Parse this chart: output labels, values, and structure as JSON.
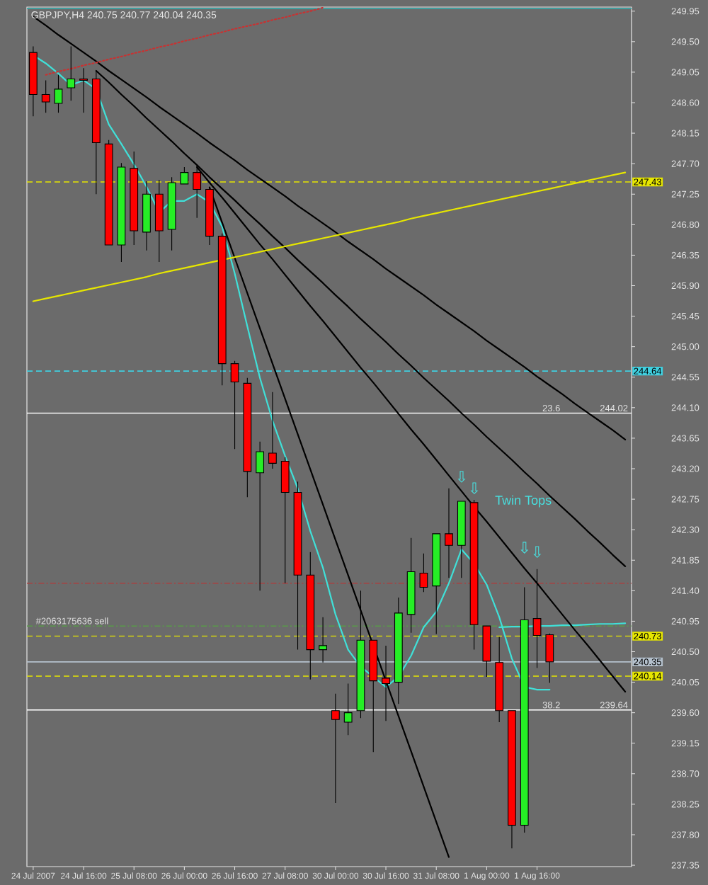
{
  "chart_data": {
    "type": "candlestick",
    "title": "GBPJPY,H4 240.75 240.77 240.04 240.35",
    "categories": [
      "24 Jul 2007",
      null,
      null,
      null,
      "24 Jul 16:00",
      null,
      null,
      null,
      "25 Jul 08:00",
      null,
      null,
      null,
      "26 Jul 00:00",
      null,
      null,
      null,
      "26 Jul 16:00",
      null,
      null,
      null,
      "27 Jul 08:00",
      null,
      null,
      null,
      "30 Jul 00:00",
      null,
      null,
      null,
      "30 Jul 16:00",
      null,
      null,
      null,
      "31 Jul 08:00",
      null,
      null,
      null,
      "1 Aug 00:00",
      null,
      null,
      null,
      "1 Aug 16:00",
      null,
      null,
      null,
      null,
      null,
      null,
      null
    ],
    "ohlc": [
      [
        249.34,
        249.43,
        248.4,
        248.72
      ],
      [
        248.72,
        248.93,
        248.45,
        248.61
      ],
      [
        248.59,
        249.01,
        248.45,
        248.8
      ],
      [
        248.82,
        249.43,
        248.63,
        248.95
      ],
      [
        248.95,
        249.11,
        248.45,
        248.93
      ],
      [
        248.95,
        249.07,
        247.25,
        248.01
      ],
      [
        247.99,
        248.05,
        246.5,
        246.5
      ],
      [
        246.5,
        247.71,
        246.25,
        247.65
      ],
      [
        247.63,
        247.88,
        246.5,
        246.71
      ],
      [
        246.69,
        247.44,
        246.42,
        247.25
      ],
      [
        247.25,
        247.46,
        246.25,
        246.71
      ],
      [
        246.73,
        247.5,
        246.42,
        247.42
      ],
      [
        247.4,
        247.65,
        247.4,
        247.57
      ],
      [
        247.57,
        247.67,
        246.9,
        247.32
      ],
      [
        247.32,
        247.36,
        246.5,
        246.63
      ],
      [
        246.63,
        246.67,
        244.43,
        244.75
      ],
      [
        244.75,
        244.79,
        243.49,
        244.48
      ],
      [
        244.46,
        244.54,
        242.78,
        243.16
      ],
      [
        243.14,
        243.6,
        241.4,
        243.45
      ],
      [
        243.43,
        244.33,
        243.2,
        243.28
      ],
      [
        243.31,
        243.37,
        241.51,
        242.85
      ],
      [
        242.85,
        243.01,
        240.53,
        241.63
      ],
      [
        241.63,
        241.97,
        240.09,
        240.53
      ],
      [
        240.53,
        241.01,
        240.34,
        240.59
      ],
      [
        239.63,
        239.88,
        238.27,
        239.5
      ],
      [
        239.46,
        240.03,
        239.27,
        239.6
      ],
      [
        239.63,
        241.4,
        239.52,
        240.67
      ],
      [
        240.67,
        240.67,
        239.02,
        240.07
      ],
      [
        240.11,
        240.59,
        239.48,
        240.03
      ],
      [
        240.05,
        241.3,
        239.73,
        241.07
      ],
      [
        241.05,
        242.18,
        240.78,
        241.68
      ],
      [
        241.66,
        241.95,
        241.38,
        241.45
      ],
      [
        241.47,
        242.24,
        240.76,
        242.24
      ],
      [
        242.24,
        242.91,
        241.59,
        242.07
      ],
      [
        242.07,
        242.72,
        241.59,
        242.72
      ],
      [
        242.7,
        242.74,
        240.53,
        240.9
      ],
      [
        240.88,
        240.88,
        240.13,
        240.36
      ],
      [
        240.34,
        240.72,
        239.46,
        239.63
      ],
      [
        239.63,
        239.63,
        237.6,
        237.94
      ],
      [
        237.94,
        241.45,
        237.83,
        240.97
      ],
      [
        240.99,
        241.72,
        240.26,
        240.74
      ],
      [
        240.75,
        240.77,
        240.04,
        240.35
      ],
      null,
      null,
      null,
      null,
      null,
      null
    ],
    "colors": [
      "#ff0000",
      "#ff0000",
      "#26ee26",
      "#26ee26",
      "#ff0000",
      "#ff0000",
      "#ff0000",
      "#26ee26",
      "#ff0000",
      "#26ee26",
      "#ff0000",
      "#26ee26",
      "#26ee26",
      "#ff0000",
      "#ff0000",
      "#ff0000",
      "#ff0000",
      "#ff0000",
      "#26ee26",
      "#ff0000",
      "#ff0000",
      "#ff0000",
      "#ff0000",
      "#26ee26",
      "#ff0000",
      "#26ee26",
      "#26ee26",
      "#ff0000",
      "#ff0000",
      "#26ee26",
      "#26ee26",
      "#ff0000",
      "#26ee26",
      "#ff0000",
      "#26ee26",
      "#ff0000",
      "#ff0000",
      "#ff0000",
      "#ff0000",
      "#26ee26",
      "#ff0000",
      "#ff0000",
      null,
      null,
      null,
      null,
      null,
      null
    ],
    "series": [
      {
        "type": "line",
        "color": "#40e0d8",
        "values": [
          249.3,
          249.18,
          249.03,
          248.86,
          248.93,
          248.8,
          248.28,
          247.99,
          247.69,
          247.36,
          246.98,
          247.15,
          247.15,
          247.25,
          247.13,
          246.77,
          246.08,
          245.3,
          244.54,
          243.91,
          243.39,
          242.91,
          242.28,
          241.74,
          241.05,
          240.53,
          240.28,
          240.13,
          239.98,
          240.13,
          240.44,
          240.86,
          241.09,
          241.51,
          242.01,
          241.8,
          241.49,
          241.01,
          240.4,
          239.98,
          239.94,
          239.94,
          null,
          null,
          null,
          null,
          null,
          null
        ]
      },
      {
        "type": "line",
        "color": "#40e0d8",
        "values": [
          null,
          null,
          null,
          null,
          null,
          null,
          null,
          null,
          null,
          null,
          null,
          null,
          null,
          null,
          null,
          null,
          null,
          null,
          null,
          null,
          null,
          null,
          null,
          null,
          null,
          null,
          null,
          null,
          null,
          null,
          null,
          null,
          null,
          null,
          null,
          null,
          null,
          240.86,
          240.87,
          240.87,
          240.88,
          240.88,
          240.89,
          240.89,
          240.9,
          240.91,
          240.91,
          240.92
        ]
      },
      {
        "type": "line",
        "color": "#000000",
        "values": [
          249.87,
          249.74,
          249.6,
          249.47,
          249.34,
          249.21,
          249.07,
          248.94,
          248.81,
          248.68,
          248.54,
          248.41,
          248.28,
          248.15,
          248.01,
          247.88,
          247.75,
          247.61,
          247.48,
          247.35,
          247.22,
          247.08,
          246.95,
          246.82,
          246.69,
          246.55,
          246.42,
          246.29,
          246.15,
          246.02,
          245.89,
          245.76,
          245.62,
          245.49,
          245.36,
          245.23,
          245.09,
          244.96,
          244.83,
          244.7,
          244.56,
          244.43,
          244.3,
          244.16,
          244.03,
          243.9,
          243.77,
          243.63
        ]
      },
      {
        "type": "line",
        "color": "#000000",
        "values": [
          null,
          null,
          null,
          null,
          null,
          249.07,
          248.9,
          248.72,
          248.55,
          248.37,
          248.2,
          248.03,
          247.85,
          247.68,
          247.5,
          247.33,
          247.16,
          246.98,
          246.81,
          246.63,
          246.46,
          246.28,
          246.11,
          245.94,
          245.76,
          245.59,
          245.41,
          245.24,
          245.07,
          244.89,
          244.72,
          244.54,
          244.37,
          244.2,
          244.02,
          243.85,
          243.67,
          243.5,
          243.33,
          243.15,
          242.98,
          242.8,
          242.63,
          242.46,
          242.28,
          242.11,
          241.93,
          241.76
        ]
      },
      {
        "type": "line",
        "color": "#000000",
        "values": [
          null,
          null,
          null,
          null,
          null,
          null,
          null,
          null,
          null,
          null,
          null,
          null,
          null,
          247.65,
          247.42,
          247.2,
          246.97,
          246.74,
          246.51,
          246.29,
          246.06,
          245.83,
          245.6,
          245.38,
          245.15,
          244.92,
          244.69,
          244.47,
          244.24,
          244.01,
          243.78,
          243.56,
          243.33,
          243.1,
          242.87,
          242.64,
          242.42,
          242.19,
          241.96,
          241.73,
          241.51,
          241.28,
          241.05,
          240.82,
          240.6,
          240.37,
          240.14,
          239.91
        ]
      },
      {
        "type": "line",
        "color": "#000000",
        "values": [
          null,
          null,
          null,
          null,
          null,
          null,
          null,
          null,
          null,
          null,
          null,
          null,
          null,
          null,
          247.35,
          246.83,
          246.31,
          245.79,
          245.27,
          244.75,
          244.23,
          243.71,
          243.19,
          242.67,
          242.15,
          241.63,
          241.11,
          240.59,
          240.07,
          239.55,
          239.03,
          238.51,
          237.99,
          237.47,
          null,
          null,
          null,
          null,
          null,
          null,
          null,
          null,
          null,
          null,
          null,
          null,
          null,
          null
        ]
      },
      {
        "type": "line",
        "color": "#e6e600",
        "values": [
          245.67,
          245.71,
          245.75,
          245.79,
          245.83,
          245.87,
          245.91,
          245.95,
          245.99,
          246.03,
          246.08,
          246.12,
          246.16,
          246.2,
          246.24,
          246.28,
          246.32,
          246.36,
          246.4,
          246.44,
          246.48,
          246.52,
          246.56,
          246.6,
          246.64,
          246.68,
          246.72,
          246.76,
          246.8,
          246.84,
          246.89,
          246.93,
          246.97,
          247.01,
          247.05,
          247.09,
          247.13,
          247.17,
          247.21,
          247.25,
          247.29,
          247.33,
          247.37,
          247.41,
          247.45,
          247.49,
          247.53,
          247.57
        ]
      },
      {
        "type": "line",
        "color": "#c83232",
        "line_style": "dotted",
        "values": [
          null,
          249.01,
          249.06,
          249.1,
          249.15,
          249.19,
          249.24,
          249.28,
          249.33,
          249.37,
          249.42,
          249.46,
          249.51,
          249.55,
          249.6,
          249.64,
          249.69,
          249.73,
          249.77,
          249.82,
          249.86,
          249.91,
          249.95,
          250.0,
          null,
          null,
          null,
          null,
          null,
          null,
          null,
          null,
          null,
          null,
          null,
          null,
          null,
          null,
          null,
          null,
          null,
          null,
          null,
          null,
          null,
          null,
          null,
          null
        ]
      }
    ],
    "ylim": [
      237.33,
      250.01
    ],
    "yticks": [
      249.95,
      {
        "value": 249.5,
        "label": "249.50"
      },
      249.05,
      {
        "value": 248.6,
        "label": "248.60"
      },
      248.15,
      {
        "value": 247.7,
        "label": "247.70"
      },
      247.25,
      {
        "value": 246.8,
        "label": "246.80"
      },
      246.35,
      {
        "value": 245.9,
        "label": "245.90"
      },
      245.45,
      {
        "value": 245,
        "label": "245.00"
      },
      244.55,
      {
        "value": 244.1,
        "label": "244.10"
      },
      243.65,
      {
        "value": 243.2,
        "label": "243.20"
      },
      242.75,
      {
        "value": 242.3,
        "label": "242.30"
      },
      241.85,
      {
        "value": 241.4,
        "label": "241.40"
      },
      240.95,
      {
        "value": 240.5,
        "label": "240.50"
      },
      240.05,
      {
        "value": 239.6,
        "label": "239.60"
      },
      239.15,
      {
        "value": 238.7,
        "label": "238.70"
      },
      238.25,
      {
        "value": 237.8,
        "label": "237.80"
      },
      237.35
    ],
    "ref_lines": [
      {
        "axis": "y",
        "value": 247.43,
        "label": "247.43",
        "color": "#e6e600",
        "line_style": "dashed"
      },
      {
        "axis": "y",
        "value": 244.64,
        "label": "244.64",
        "color": "#40d0e0",
        "line_style": "dashed"
      },
      {
        "axis": "y",
        "value": 244.02,
        "label": "244.02",
        "color": "#ffffff",
        "line_style": "solid"
      },
      {
        "axis": "y",
        "value": 241.51,
        "color": "#a84040",
        "line_style": "dashdot"
      },
      {
        "axis": "y",
        "value": 240.88,
        "color": "#5a9a4a",
        "line_style": "dashdot"
      },
      {
        "axis": "y",
        "value": 240.73,
        "label": "240.73",
        "color": "#e6e600",
        "line_style": "dashed"
      },
      {
        "axis": "y",
        "value": 240.35,
        "label": "240.35",
        "color": "#b4c0cc",
        "line_style": "solid"
      },
      {
        "axis": "y",
        "value": 240.14,
        "label": "240.14",
        "color": "#e6e600",
        "line_style": "dashed"
      },
      {
        "axis": "y",
        "value": 239.64,
        "label": "239.64",
        "color": "#ffffff",
        "line_style": "solid"
      },
      {
        "axis": "y",
        "value": 249.99,
        "color": "#3aa8a8",
        "line_style": "solid"
      }
    ],
    "annotations": [
      "Twin Tops",
      {
        "text": "#2063175636 sell",
        "y": 240.88
      },
      "⇩",
      "⇩",
      "⇩",
      "⇩",
      {
        "text": "23.6",
        "y": 244.02
      },
      {
        "text": "38.2",
        "y": 239.64
      }
    ]
  }
}
